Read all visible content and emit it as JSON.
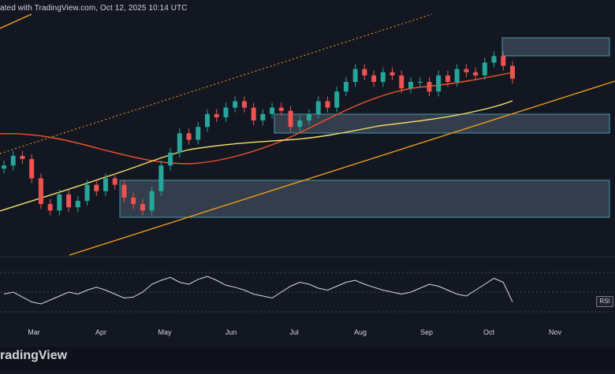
{
  "header": {
    "text": "ated with TradingView.com, Oct 12, 2025 10:14 UTC"
  },
  "footer": {
    "logo_text": "radingView"
  },
  "rsi_label": "RSI",
  "colors": {
    "background": "#131722",
    "up_candle": "#26a69a",
    "down_candle": "#ef5350",
    "ma_red": "#f0542a",
    "ma_yellow": "#f5e36b",
    "trendline": "#f7a21b",
    "zone_fill": "#5d6d7e",
    "zone_border": "#53b3c6",
    "rsi_line": "#d8dce6"
  },
  "chart_data": {
    "type": "candlestick",
    "x_axis_labels": [
      "Mar",
      "Apr",
      "May",
      "Jun",
      "Jul",
      "Aug",
      "Sep",
      "Oct",
      "Nov"
    ],
    "series": [
      {
        "name": "price",
        "values": [
          92,
          95,
          94,
          88,
          80,
          78,
          83,
          79,
          81,
          86,
          84,
          88,
          86,
          82,
          80,
          78,
          84,
          92,
          96,
          102,
          100,
          104,
          108,
          107,
          110,
          112,
          110,
          106,
          108,
          110,
          109,
          104,
          106,
          108,
          112,
          110,
          115,
          118,
          122,
          120,
          118,
          121,
          120,
          116,
          118,
          118,
          115,
          120,
          118,
          122,
          121,
          120,
          124,
          126,
          123,
          119
        ]
      },
      {
        "name": "ma_red",
        "values": []
      },
      {
        "name": "ma_yellow",
        "values": []
      },
      {
        "name": "rsi",
        "values": [
          48,
          50,
          45,
          40,
          38,
          42,
          46,
          50,
          48,
          52,
          55,
          52,
          48,
          44,
          45,
          50,
          58,
          62,
          65,
          60,
          58,
          63,
          66,
          62,
          57,
          55,
          52,
          48,
          46,
          44,
          50,
          56,
          60,
          58,
          54,
          52,
          56,
          60,
          62,
          58,
          55,
          52,
          50,
          48,
          50,
          54,
          58,
          56,
          52,
          48,
          46,
          52,
          58,
          64,
          60,
          40
        ]
      }
    ]
  }
}
